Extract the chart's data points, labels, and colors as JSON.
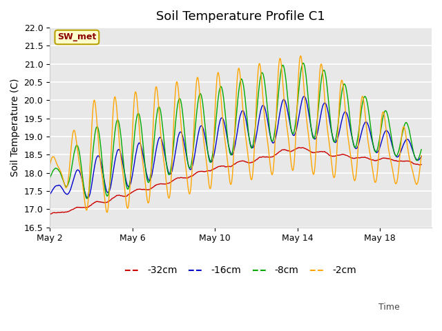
{
  "title": "Soil Temperature Profile C1",
  "ylabel": "Soil Temperature (C)",
  "ylim": [
    16.5,
    22.0
  ],
  "y_ticks": [
    16.5,
    17.0,
    17.5,
    18.0,
    18.5,
    19.0,
    19.5,
    20.0,
    20.5,
    21.0,
    21.5,
    22.0
  ],
  "x_tick_labels": [
    "May 2",
    "May 6",
    "May 10",
    "May 14",
    "May 18"
  ],
  "x_tick_positions": [
    0,
    4,
    8,
    12,
    16
  ],
  "xlim": [
    0,
    18.5
  ],
  "time_label": "Time",
  "annotation_text": "SW_met",
  "annotation_bg": "#ffffcc",
  "annotation_border": "#b8a000",
  "annotation_text_color": "#8b0000",
  "colors": {
    "-32cm": "#cc0000",
    "-16cm": "#0000cc",
    "-8cm": "#00aa00",
    "-2cm": "#ffa500"
  },
  "legend_labels": [
    "-32cm",
    "-16cm",
    "-8cm",
    "-2cm"
  ],
  "plot_bg": "#e8e8e8",
  "grid_color": "#ffffff",
  "title_fontsize": 13,
  "n_points": 1000
}
